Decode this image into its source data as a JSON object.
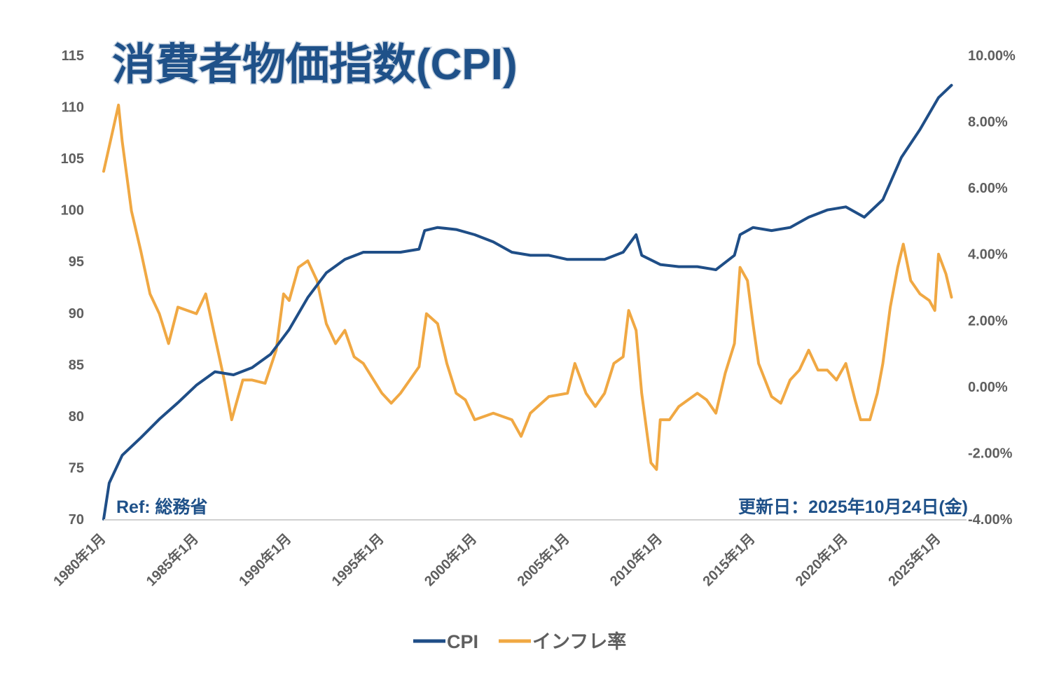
{
  "chart_data": {
    "type": "line",
    "title": "消費者物価指数(CPI)",
    "xlabel": "",
    "ylabel": "",
    "x_ticks": [
      "1980年1月",
      "1985年1月",
      "1990年1月",
      "1995年1月",
      "2000年1月",
      "2005年1月",
      "2010年1月",
      "2015年1月",
      "2020年1月",
      "2025年1月"
    ],
    "y_left": {
      "ticks": [
        "70",
        "75",
        "80",
        "85",
        "90",
        "95",
        "100",
        "105",
        "110",
        "115"
      ],
      "ylim": [
        70,
        115
      ]
    },
    "y_right": {
      "ticks": [
        "-4.00%",
        "-2.00%",
        "0.00%",
        "2.00%",
        "4.00%",
        "6.00%",
        "8.00%",
        "10.00%"
      ],
      "ylim": [
        -4,
        10
      ]
    },
    "grid": false,
    "legend_position": "bottom",
    "annotations": {
      "ref": "Ref: 総務省",
      "updated": "更新日：2025年10月24日(金)"
    },
    "series": [
      {
        "name": "CPI",
        "axis": "left",
        "color": "#1f4e87",
        "x": [
          1980.0,
          1980.3,
          1981,
          1982,
          1983,
          1984,
          1985,
          1986,
          1987,
          1988,
          1989,
          1990,
          1991,
          1992,
          1993,
          1994,
          1995,
          1996,
          1997,
          1997.3,
          1998,
          1999,
          2000,
          2001,
          2002,
          2003,
          2004,
          2005,
          2006,
          2007,
          2008,
          2008.7,
          2009,
          2010,
          2011,
          2012,
          2013,
          2014,
          2014.3,
          2015,
          2016,
          2017,
          2018,
          2019,
          2020,
          2021,
          2022,
          2023,
          2024,
          2025,
          2025.7
        ],
        "values": [
          70.0,
          73.5,
          76.2,
          77.9,
          79.7,
          81.3,
          83.0,
          84.3,
          84.0,
          84.7,
          86.0,
          88.4,
          91.5,
          93.9,
          95.2,
          95.9,
          95.9,
          95.9,
          96.2,
          98.0,
          98.3,
          98.1,
          97.6,
          96.9,
          95.9,
          95.6,
          95.6,
          95.2,
          95.2,
          95.2,
          95.9,
          97.6,
          95.6,
          94.7,
          94.5,
          94.5,
          94.2,
          95.6,
          97.6,
          98.3,
          98.0,
          98.3,
          99.3,
          100.0,
          100.3,
          99.3,
          101.0,
          105.1,
          107.8,
          110.9,
          112.1
        ]
      },
      {
        "name": "インフレ率",
        "axis": "right",
        "color": "#f0a843",
        "x": [
          1980.0,
          1980.8,
          1981,
          1981.5,
          1982,
          1982.5,
          1983,
          1983.5,
          1984,
          1985,
          1985.5,
          1986,
          1986.5,
          1986.9,
          1987.5,
          1988,
          1988.7,
          1989.3,
          1989.7,
          1990,
          1990.5,
          1991,
          1991.5,
          1992,
          1992.5,
          1993,
          1993.5,
          1994,
          1995,
          1995.5,
          1996,
          1996.5,
          1997,
          1997.4,
          1998,
          1998.5,
          1999,
          1999.5,
          2000,
          2001,
          2002,
          2002.5,
          2003,
          2004,
          2005,
          2005.4,
          2006,
          2006.5,
          2007,
          2007.5,
          2008,
          2008.3,
          2008.7,
          2009,
          2009.5,
          2009.8,
          2010,
          2010.5,
          2011,
          2011.5,
          2012,
          2012.5,
          2013,
          2013.5,
          2014,
          2014.3,
          2014.7,
          2015,
          2015.3,
          2016,
          2016.5,
          2017,
          2017.5,
          2018,
          2018.5,
          2019,
          2019.5,
          2020,
          2020.5,
          2020.8,
          2021.3,
          2021.7,
          2022,
          2022.4,
          2022.8,
          2023.1,
          2023.5,
          2024,
          2024.5,
          2024.8,
          2025,
          2025.4,
          2025.7
        ],
        "values": [
          6.5,
          8.5,
          7.4,
          5.3,
          4.1,
          2.8,
          2.2,
          1.3,
          2.4,
          2.2,
          2.8,
          1.5,
          0.2,
          -1.0,
          0.2,
          0.2,
          0.1,
          1.1,
          2.8,
          2.6,
          3.6,
          3.8,
          3.2,
          1.9,
          1.3,
          1.7,
          0.9,
          0.7,
          -0.2,
          -0.5,
          -0.2,
          0.2,
          0.6,
          2.2,
          1.9,
          0.7,
          -0.2,
          -0.4,
          -1.0,
          -0.8,
          -1.0,
          -1.5,
          -0.8,
          -0.3,
          -0.2,
          0.7,
          -0.2,
          -0.6,
          -0.2,
          0.7,
          0.9,
          2.3,
          1.7,
          -0.2,
          -2.3,
          -2.5,
          -1.0,
          -1.0,
          -0.6,
          -0.4,
          -0.2,
          -0.4,
          -0.8,
          0.4,
          1.3,
          3.6,
          3.2,
          1.9,
          0.7,
          -0.3,
          -0.5,
          0.2,
          0.5,
          1.1,
          0.5,
          0.5,
          0.2,
          0.7,
          -0.4,
          -1.0,
          -1.0,
          -0.2,
          0.7,
          2.4,
          3.6,
          4.3,
          3.2,
          2.8,
          2.6,
          2.3,
          4.0,
          3.4,
          2.7
        ]
      }
    ]
  }
}
